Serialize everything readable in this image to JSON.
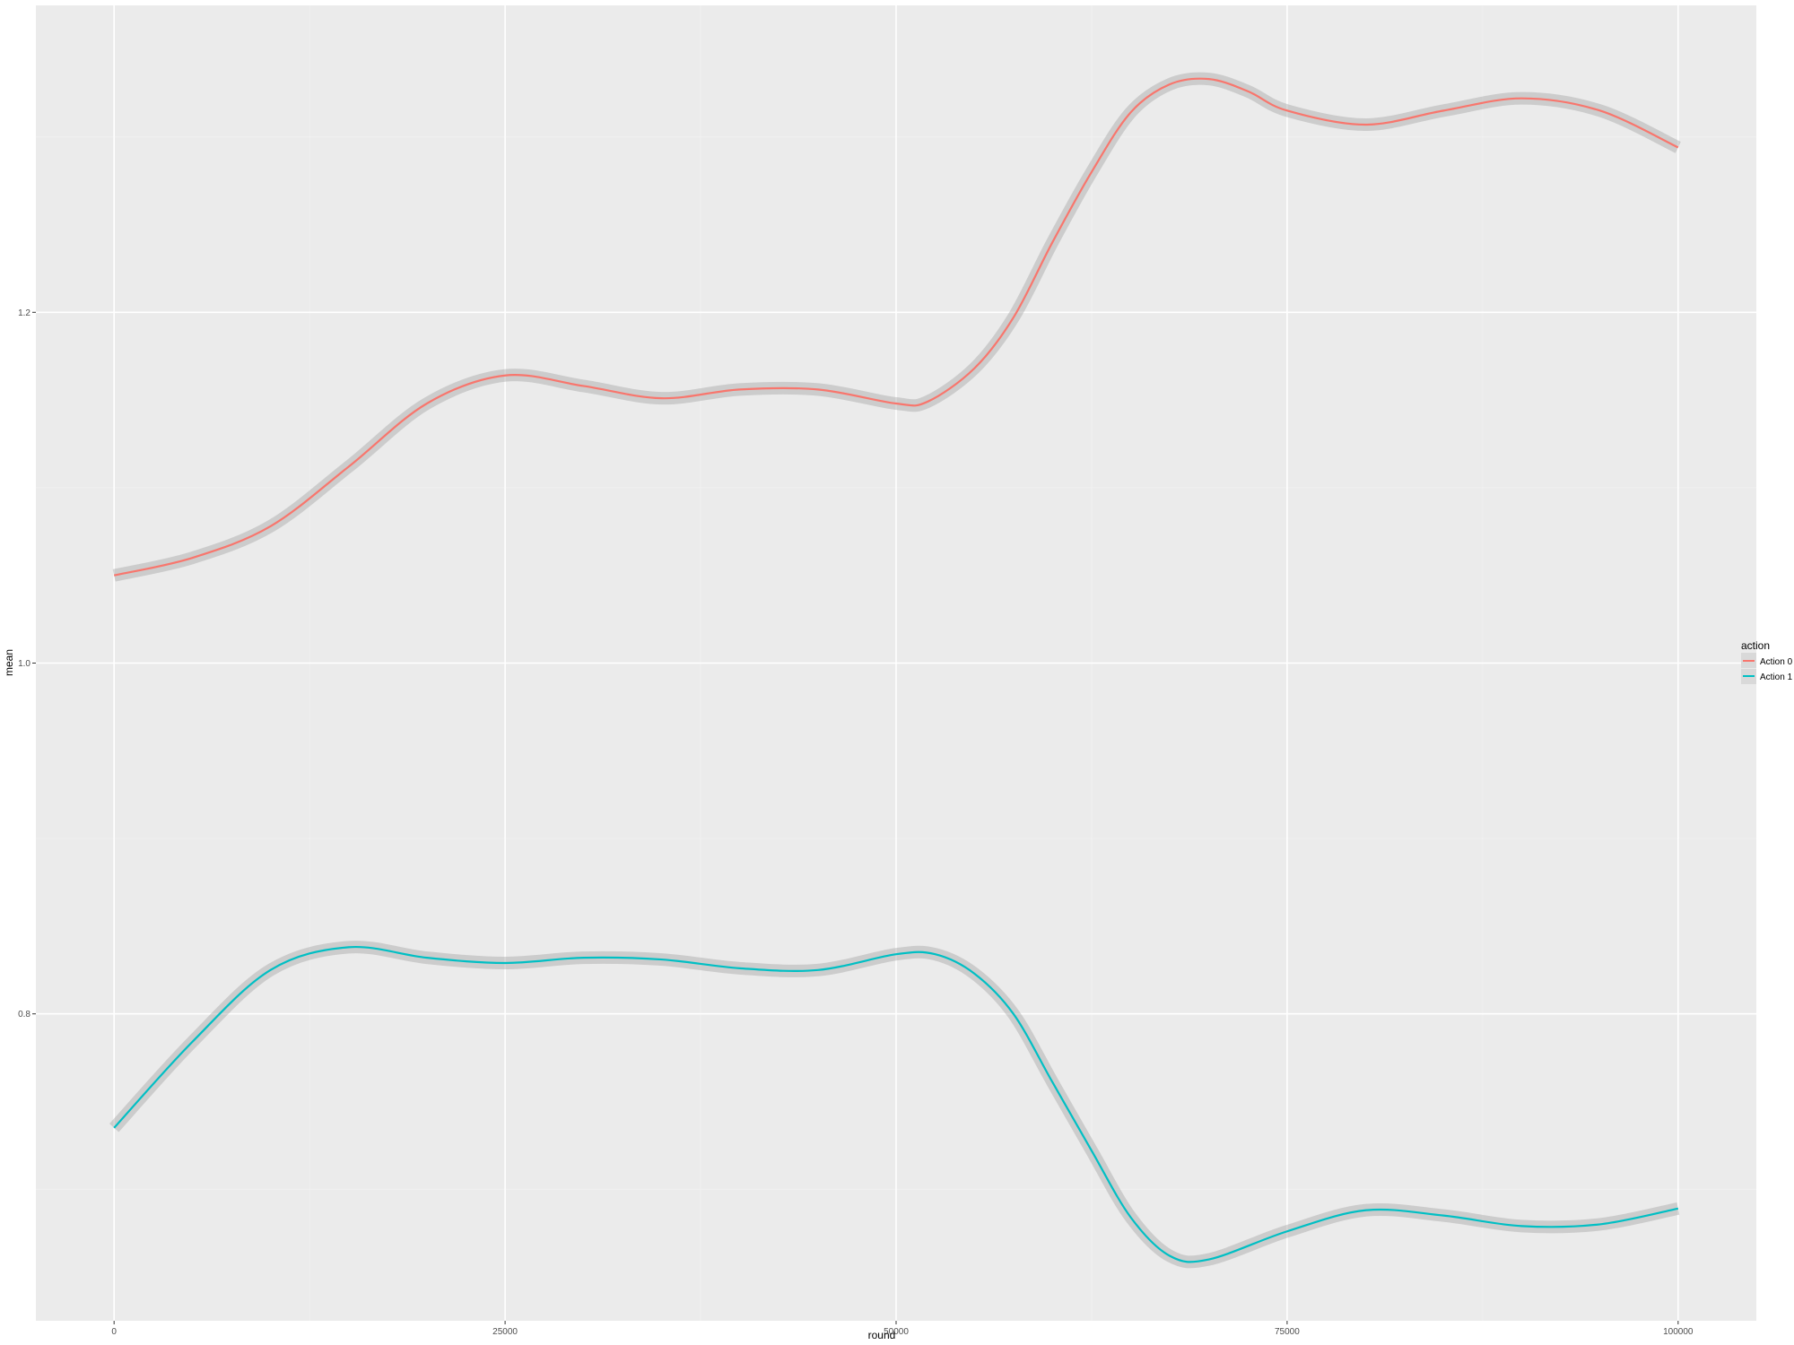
{
  "chart_data": {
    "type": "line",
    "xlabel": "round",
    "ylabel": "mean",
    "xlim": [
      -5000,
      105000
    ],
    "ylim": [
      0.625,
      1.375
    ],
    "x_ticks": [
      0,
      25000,
      50000,
      75000,
      100000
    ],
    "x_tick_labels": [
      "0",
      "25000",
      "50000",
      "75000",
      "100000"
    ],
    "y_ticks": [
      0.8,
      1.0,
      1.2
    ],
    "y_tick_labels": [
      "0.8",
      "1.0",
      "1.2"
    ],
    "grid": true,
    "background": "#ebebeb",
    "confidence_band": true,
    "legend": {
      "title": "action",
      "position": "right",
      "entries": [
        "Action 0",
        "Action 1"
      ]
    },
    "series": [
      {
        "name": "Action 0",
        "color": "#f8766d",
        "x": [
          0,
          5000,
          10000,
          15000,
          20000,
          25000,
          30000,
          35000,
          40000,
          45000,
          50000,
          52000,
          55000,
          57500,
          60000,
          62500,
          65000,
          67500,
          70000,
          72500,
          75000,
          80000,
          85000,
          90000,
          95000,
          100000
        ],
        "y": [
          1.05,
          1.06,
          1.078,
          1.112,
          1.148,
          1.164,
          1.158,
          1.151,
          1.156,
          1.156,
          1.148,
          1.149,
          1.168,
          1.197,
          1.24,
          1.28,
          1.314,
          1.33,
          1.333,
          1.326,
          1.315,
          1.307,
          1.315,
          1.322,
          1.315,
          1.294
        ]
      },
      {
        "name": "Action 1",
        "color": "#00bfc4",
        "x": [
          0,
          5000,
          10000,
          15000,
          20000,
          25000,
          30000,
          35000,
          40000,
          45000,
          50000,
          52500,
          55000,
          57500,
          60000,
          62500,
          65000,
          67500,
          70000,
          75000,
          80000,
          85000,
          90000,
          95000,
          100000
        ],
        "y": [
          0.735,
          0.784,
          0.825,
          0.838,
          0.832,
          0.829,
          0.832,
          0.831,
          0.826,
          0.825,
          0.834,
          0.834,
          0.823,
          0.8,
          0.761,
          0.722,
          0.684,
          0.662,
          0.66,
          0.676,
          0.688,
          0.685,
          0.679,
          0.68,
          0.689
        ]
      }
    ]
  }
}
